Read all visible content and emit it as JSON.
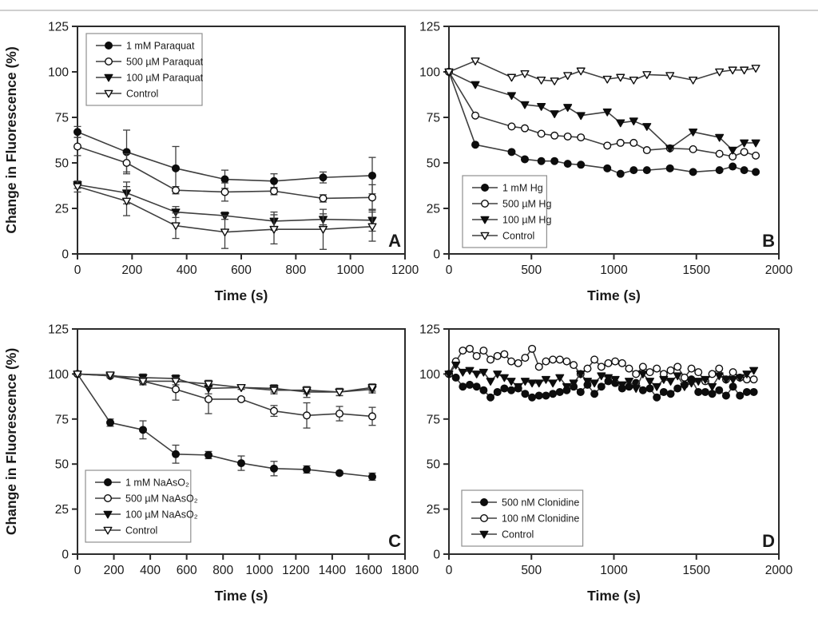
{
  "figure": {
    "background": "#ffffff",
    "description_labels": {
      "y_axis_shared": "Change in Fluorescence (%)",
      "x_axis_shared": "Time (s)"
    }
  },
  "colors": {
    "axis": "#2b2b2b",
    "line": "#3f3f3f",
    "marker_filled": "#0d0d0d",
    "marker_open_fill": "#ffffff",
    "text": "#1a1a1a",
    "legend_border": "#8f8f8f",
    "top_rule": "#cfcfcf"
  },
  "chart_data": [
    {
      "id": "panel-a",
      "corner_label": "A",
      "type": "line",
      "xlabel": "Time (s)",
      "ylabel": "Change in Fluorescence (%)",
      "xlim": [
        0,
        1200
      ],
      "ylim": [
        0,
        125
      ],
      "xticks": [
        0,
        200,
        400,
        600,
        800,
        1000,
        1200
      ],
      "yticks": [
        0,
        25,
        50,
        75,
        100,
        125
      ],
      "grid": false,
      "legend_position": "top-left",
      "series": [
        {
          "name": "1 mM Paraquat",
          "marker": "circle-filled",
          "x": [
            0,
            180,
            360,
            540,
            720,
            900,
            1080
          ],
          "y": [
            67,
            56,
            47,
            41,
            40,
            42,
            43
          ],
          "err": [
            3,
            12,
            12,
            5,
            4,
            3,
            10
          ]
        },
        {
          "name": "500 µM Paraquat",
          "marker": "circle-open",
          "x": [
            0,
            180,
            360,
            540,
            720,
            900,
            1080
          ],
          "y": [
            59,
            50,
            35,
            34,
            34.5,
            30.5,
            31
          ],
          "err": [
            5,
            5,
            2,
            5,
            2,
            2,
            7
          ]
        },
        {
          "name": "100 µM Paraquat",
          "marker": "triangle-filled",
          "x": [
            0,
            180,
            360,
            540,
            720,
            900,
            1080
          ],
          "y": [
            38,
            33.5,
            23,
            21,
            18,
            19,
            18.5
          ],
          "err": [
            2,
            6,
            3,
            2,
            5,
            3,
            6
          ]
        },
        {
          "name": "Control",
          "marker": "triangle-open",
          "x": [
            0,
            180,
            360,
            540,
            720,
            900,
            1080
          ],
          "y": [
            37,
            29,
            15.5,
            12,
            13.5,
            13.5,
            15
          ],
          "err": [
            3,
            8,
            7,
            9,
            8,
            11,
            8
          ]
        }
      ]
    },
    {
      "id": "panel-b",
      "corner_label": "B",
      "type": "line",
      "xlabel": "Time (s)",
      "ylabel": "",
      "xlim": [
        0,
        2000
      ],
      "ylim": [
        0,
        125
      ],
      "xticks": [
        0,
        500,
        1000,
        1500,
        2000
      ],
      "yticks": [
        0,
        25,
        50,
        75,
        100,
        125
      ],
      "grid": false,
      "legend_position": "bottom-left",
      "series": [
        {
          "name": "1 mM Hg",
          "marker": "circle-filled",
          "x": [
            0,
            160,
            380,
            460,
            560,
            640,
            720,
            800,
            960,
            1040,
            1120,
            1200,
            1340,
            1480,
            1640,
            1720,
            1790,
            1860
          ],
          "y": [
            100,
            60,
            56,
            52,
            51,
            51,
            49.5,
            49,
            47,
            44,
            46,
            46,
            47,
            45,
            46,
            48,
            46,
            45
          ]
        },
        {
          "name": "500 µM Hg",
          "marker": "circle-open",
          "x": [
            0,
            160,
            380,
            460,
            560,
            640,
            720,
            800,
            960,
            1040,
            1120,
            1200,
            1340,
            1480,
            1640,
            1720,
            1790,
            1860
          ],
          "y": [
            100,
            76,
            70,
            69,
            66,
            65,
            64.5,
            64,
            59.5,
            61,
            61,
            57,
            58,
            57.5,
            55,
            53.5,
            56,
            54
          ]
        },
        {
          "name": "100 µM Hg",
          "marker": "triangle-filled",
          "x": [
            0,
            160,
            380,
            460,
            560,
            640,
            720,
            800,
            960,
            1040,
            1120,
            1200,
            1340,
            1480,
            1640,
            1720,
            1790,
            1860
          ],
          "y": [
            100,
            93,
            87,
            82,
            81,
            77,
            80.5,
            76,
            78,
            72,
            73,
            70,
            58,
            67,
            64,
            57,
            61,
            61
          ]
        },
        {
          "name": "Control",
          "marker": "triangle-open",
          "x": [
            0,
            160,
            380,
            460,
            560,
            640,
            720,
            800,
            960,
            1040,
            1120,
            1200,
            1340,
            1480,
            1640,
            1720,
            1790,
            1860
          ],
          "y": [
            100,
            106,
            97,
            99,
            95.5,
            95,
            98,
            100.5,
            96,
            97,
            95.5,
            98.5,
            98,
            95.5,
            100,
            101,
            101,
            102
          ]
        }
      ]
    },
    {
      "id": "panel-c",
      "corner_label": "C",
      "type": "line",
      "xlabel": "Time (s)",
      "ylabel": "Change in Fluorescence (%)",
      "xlim": [
        0,
        1800
      ],
      "ylim": [
        0,
        125
      ],
      "xticks": [
        0,
        200,
        400,
        600,
        800,
        1000,
        1200,
        1400,
        1600,
        1800
      ],
      "yticks": [
        0,
        25,
        50,
        75,
        100,
        125
      ],
      "grid": false,
      "legend_position": "bottom-left",
      "series": [
        {
          "name": "1 mM NaAsO₂",
          "marker": "circle-filled",
          "x": [
            0,
            180,
            360,
            540,
            720,
            900,
            1080,
            1260,
            1440,
            1620
          ],
          "y": [
            100,
            73,
            69,
            55.5,
            55,
            50.5,
            47.5,
            47,
            45,
            43
          ],
          "err": [
            0,
            2,
            5,
            5,
            2,
            4,
            4,
            2,
            1,
            2
          ]
        },
        {
          "name": "500 µM NaAsO₂",
          "marker": "circle-open",
          "x": [
            0,
            180,
            360,
            540,
            720,
            900,
            1080,
            1260,
            1440,
            1620
          ],
          "y": [
            100,
            99,
            96,
            91.5,
            86,
            86,
            79.5,
            77,
            78,
            76.5
          ],
          "err": [
            0,
            1,
            2,
            6,
            8,
            1,
            3,
            7,
            4,
            5
          ]
        },
        {
          "name": "100 µM NaAsO₂",
          "marker": "triangle-filled",
          "x": [
            0,
            180,
            360,
            540,
            720,
            900,
            1080,
            1260,
            1440,
            1620
          ],
          "y": [
            100,
            99,
            98,
            97.5,
            92,
            92.5,
            92,
            90,
            90,
            91.5
          ],
          "err": [
            0,
            1,
            2,
            2,
            3,
            1,
            2,
            3,
            2,
            2
          ]
        },
        {
          "name": "Control",
          "marker": "triangle-open",
          "x": [
            0,
            180,
            360,
            540,
            720,
            900,
            1080,
            1260,
            1440,
            1620
          ],
          "y": [
            100,
            99.5,
            96,
            96,
            94.5,
            92.5,
            91,
            91,
            90,
            92.5
          ],
          "err": [
            0,
            1,
            2,
            2,
            2,
            1,
            2,
            2,
            2,
            2
          ]
        }
      ]
    },
    {
      "id": "panel-d",
      "corner_label": "D",
      "type": "line",
      "xlabel": "Time (s)",
      "ylabel": "",
      "xlim": [
        0,
        2000
      ],
      "ylim": [
        0,
        125
      ],
      "xticks": [
        0,
        500,
        1000,
        1500,
        2000
      ],
      "yticks": [
        0,
        25,
        50,
        75,
        100,
        125
      ],
      "grid": false,
      "legend_position": "bottom-left",
      "series": [
        {
          "name": "500 nM Clonidine",
          "marker": "circle-filled",
          "x": [
            0,
            42,
            84,
            126,
            168,
            210,
            252,
            294,
            336,
            378,
            420,
            462,
            504,
            546,
            588,
            630,
            672,
            714,
            756,
            798,
            840,
            882,
            924,
            966,
            1008,
            1050,
            1092,
            1134,
            1176,
            1218,
            1260,
            1302,
            1344,
            1386,
            1428,
            1470,
            1512,
            1554,
            1596,
            1638,
            1680,
            1722,
            1764,
            1806,
            1848
          ],
          "y": [
            100,
            98,
            93,
            94,
            93,
            91,
            87,
            90,
            92,
            91,
            92,
            89,
            87,
            88,
            88,
            89,
            90,
            91,
            93,
            90,
            94,
            89,
            93,
            96,
            95,
            92,
            93,
            95,
            91,
            92,
            87,
            90,
            89,
            92,
            94,
            97,
            90,
            90,
            89,
            91,
            88,
            93,
            88,
            90,
            90
          ]
        },
        {
          "name": "100 nM Clonidine",
          "marker": "circle-open",
          "x": [
            0,
            42,
            84,
            126,
            168,
            210,
            252,
            294,
            336,
            378,
            420,
            462,
            504,
            546,
            588,
            630,
            672,
            714,
            756,
            798,
            840,
            882,
            924,
            966,
            1008,
            1050,
            1092,
            1134,
            1176,
            1218,
            1260,
            1302,
            1344,
            1386,
            1428,
            1470,
            1512,
            1554,
            1596,
            1638,
            1680,
            1722,
            1764,
            1806,
            1848
          ],
          "y": [
            100,
            107,
            113,
            114,
            110,
            113,
            108,
            110,
            111,
            107,
            106,
            109,
            114,
            104,
            107,
            108,
            108,
            107,
            105,
            100,
            103,
            108,
            104,
            106,
            107,
            106,
            103,
            100,
            104,
            101,
            103,
            100,
            102,
            104,
            98,
            103,
            101,
            96,
            100,
            103,
            97,
            101,
            98,
            97,
            97
          ]
        },
        {
          "name": "Control",
          "marker": "triangle-filled",
          "x": [
            0,
            42,
            84,
            126,
            168,
            210,
            252,
            294,
            336,
            378,
            420,
            462,
            504,
            546,
            588,
            630,
            672,
            714,
            756,
            798,
            840,
            882,
            924,
            966,
            1008,
            1050,
            1092,
            1134,
            1176,
            1218,
            1260,
            1302,
            1344,
            1386,
            1428,
            1470,
            1512,
            1554,
            1596,
            1638,
            1680,
            1722,
            1764,
            1806,
            1848
          ],
          "y": [
            100,
            105,
            101,
            102,
            100,
            101,
            96,
            100,
            98,
            96,
            93,
            96,
            95,
            95,
            97,
            95,
            98,
            93,
            95,
            100,
            96,
            95,
            99,
            98,
            97,
            94,
            96,
            92,
            100,
            96,
            93,
            97,
            96,
            99,
            93,
            95,
            96,
            97,
            93,
            99,
            97,
            97,
            98,
            100,
            102
          ]
        }
      ]
    }
  ]
}
